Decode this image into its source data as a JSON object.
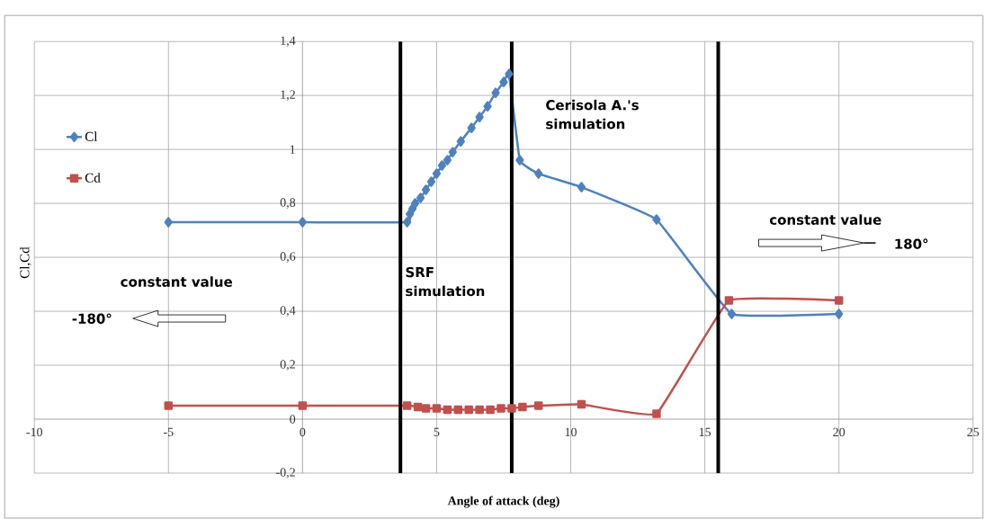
{
  "chart_data": {
    "type": "line",
    "xlabel": "Angle of attack (deg)",
    "ylabel": "Cl,Cd",
    "xlim": [
      -10,
      25
    ],
    "xticks": [
      -10,
      -5,
      0,
      5,
      10,
      15,
      20,
      25
    ],
    "ylim": [
      -0.2,
      1.4
    ],
    "yticks": [
      {
        "value": -0.2,
        "label": "-0,2"
      },
      0,
      {
        "value": 0.2,
        "label": "0,2"
      },
      {
        "value": 0.4,
        "label": "0,4"
      },
      {
        "value": 0.6,
        "label": "0,6"
      },
      {
        "value": 0.8,
        "label": "0,8"
      },
      1,
      {
        "value": 1.2,
        "label": "1,2"
      },
      {
        "value": 1.4,
        "label": "1,4"
      }
    ],
    "grid": true,
    "legend": "left",
    "series": [
      {
        "name": "Cl",
        "color": "#4f81bd",
        "marker": "diamond",
        "x": [
          -5,
          0,
          3.9,
          4.0,
          4.1,
          4.2,
          4.4,
          4.6,
          4.8,
          5.0,
          5.2,
          5.4,
          5.6,
          5.9,
          6.3,
          6.6,
          6.9,
          7.2,
          7.5,
          7.7,
          8.1,
          8.8,
          10.4,
          13.2,
          16,
          20
        ],
        "values": [
          0.73,
          0.73,
          0.73,
          0.76,
          0.78,
          0.8,
          0.82,
          0.85,
          0.88,
          0.91,
          0.94,
          0.96,
          0.99,
          1.03,
          1.08,
          1.12,
          1.16,
          1.21,
          1.25,
          1.28,
          0.96,
          0.91,
          0.86,
          0.74,
          0.39,
          0.39
        ]
      },
      {
        "name": "Cd",
        "color": "#c0504d",
        "marker": "square",
        "x": [
          -5,
          0,
          3.9,
          4.3,
          4.6,
          5.0,
          5.4,
          5.8,
          6.2,
          6.6,
          7.0,
          7.4,
          7.8,
          8.2,
          8.8,
          10.4,
          13.2,
          15.9,
          20
        ],
        "values": [
          0.05,
          0.05,
          0.05,
          0.045,
          0.04,
          0.04,
          0.035,
          0.035,
          0.035,
          0.035,
          0.035,
          0.04,
          0.04,
          0.045,
          0.05,
          0.055,
          0.02,
          0.44,
          0.44
        ]
      }
    ],
    "ref_lines": [
      {
        "axis": "x",
        "value": 3.65,
        "color": "#000000"
      },
      {
        "axis": "x",
        "value": 7.8,
        "color": "#000000"
      },
      {
        "axis": "x",
        "value": 15.5,
        "color": "#000000"
      }
    ],
    "annotations": [
      "Cerisola A.'s simulation",
      "SRF simulation",
      "constant value",
      "180°",
      "constant value",
      "-180°"
    ]
  }
}
